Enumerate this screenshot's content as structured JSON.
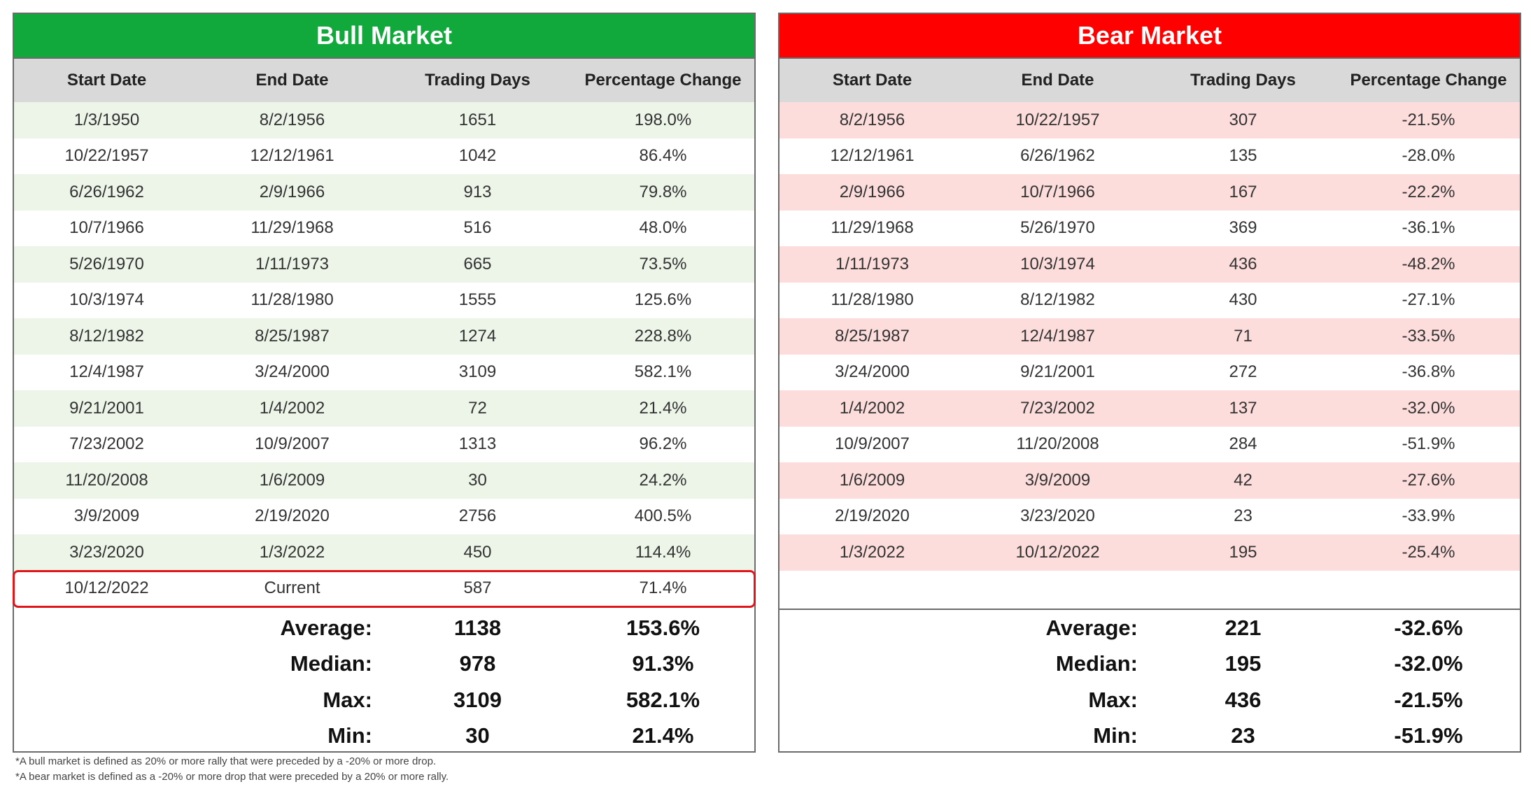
{
  "colors": {
    "bull_header": "#11a83c",
    "bear_header": "#fe0000",
    "bull_row_stripe": "#ecf5e8",
    "bear_row_stripe": "#fddcdc",
    "column_header_bg": "#d9d9d9",
    "current_highlight": "#e0161a"
  },
  "chart_data": [
    {
      "type": "table",
      "title": "Bull Market",
      "columns": [
        "Start Date",
        "End Date",
        "Trading Days",
        "Percentage Change"
      ],
      "rows": [
        [
          "1/3/1950",
          "8/2/1956",
          "1651",
          "198.0%"
        ],
        [
          "10/22/1957",
          "12/12/1961",
          "1042",
          "86.4%"
        ],
        [
          "6/26/1962",
          "2/9/1966",
          "913",
          "79.8%"
        ],
        [
          "10/7/1966",
          "11/29/1968",
          "516",
          "48.0%"
        ],
        [
          "5/26/1970",
          "1/11/1973",
          "665",
          "73.5%"
        ],
        [
          "10/3/1974",
          "11/28/1980",
          "1555",
          "125.6%"
        ],
        [
          "8/12/1982",
          "8/25/1987",
          "1274",
          "228.8%"
        ],
        [
          "12/4/1987",
          "3/24/2000",
          "3109",
          "582.1%"
        ],
        [
          "9/21/2001",
          "1/4/2002",
          "72",
          "21.4%"
        ],
        [
          "7/23/2002",
          "10/9/2007",
          "1313",
          "96.2%"
        ],
        [
          "11/20/2008",
          "1/6/2009",
          "30",
          "24.2%"
        ],
        [
          "3/9/2009",
          "2/19/2020",
          "2756",
          "400.5%"
        ],
        [
          "3/23/2020",
          "1/3/2022",
          "450",
          "114.4%"
        ],
        [
          "10/12/2022",
          "Current",
          "587",
          "71.4%"
        ]
      ],
      "stats": [
        {
          "label": "Average:",
          "days": "1138",
          "change": "153.6%"
        },
        {
          "label": "Median:",
          "days": "978",
          "change": "91.3%"
        },
        {
          "label": "Max:",
          "days": "3109",
          "change": "582.1%"
        },
        {
          "label": "Min:",
          "days": "30",
          "change": "21.4%"
        }
      ]
    },
    {
      "type": "table",
      "title": "Bear Market",
      "columns": [
        "Start Date",
        "End Date",
        "Trading Days",
        "Percentage Change"
      ],
      "rows": [
        [
          "8/2/1956",
          "10/22/1957",
          "307",
          "-21.5%"
        ],
        [
          "12/12/1961",
          "6/26/1962",
          "135",
          "-28.0%"
        ],
        [
          "2/9/1966",
          "10/7/1966",
          "167",
          "-22.2%"
        ],
        [
          "11/29/1968",
          "5/26/1970",
          "369",
          "-36.1%"
        ],
        [
          "1/11/1973",
          "10/3/1974",
          "436",
          "-48.2%"
        ],
        [
          "11/28/1980",
          "8/12/1982",
          "430",
          "-27.1%"
        ],
        [
          "8/25/1987",
          "12/4/1987",
          "71",
          "-33.5%"
        ],
        [
          "3/24/2000",
          "9/21/2001",
          "272",
          "-36.8%"
        ],
        [
          "1/4/2002",
          "7/23/2002",
          "137",
          "-32.0%"
        ],
        [
          "10/9/2007",
          "11/20/2008",
          "284",
          "-51.9%"
        ],
        [
          "1/6/2009",
          "3/9/2009",
          "42",
          "-27.6%"
        ],
        [
          "2/19/2020",
          "3/23/2020",
          "23",
          "-33.9%"
        ],
        [
          "1/3/2022",
          "10/12/2022",
          "195",
          "-25.4%"
        ]
      ],
      "stats": [
        {
          "label": "Average:",
          "days": "221",
          "change": "-32.6%"
        },
        {
          "label": "Median:",
          "days": "195",
          "change": "-32.0%"
        },
        {
          "label": "Max:",
          "days": "436",
          "change": "-21.5%"
        },
        {
          "label": "Min:",
          "days": "23",
          "change": "-51.9%"
        }
      ]
    }
  ],
  "footnotes": [
    "*A bull market is defined as 20% or more rally that were preceded by a -20% or more drop.",
    "*A bear market is defined as a -20% or more drop that were preceded by a 20% or more rally."
  ]
}
